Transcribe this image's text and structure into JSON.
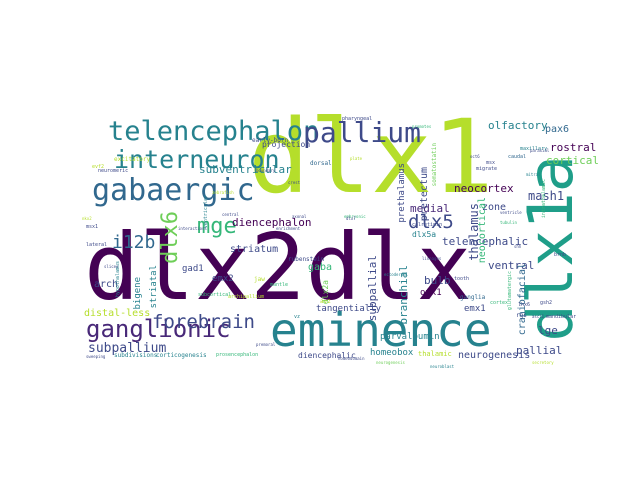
{
  "colors": {
    "background": "#ffffff",
    "palette": [
      "#440154",
      "#482878",
      "#3e4a89",
      "#31688e",
      "#26828e",
      "#1f9e89",
      "#35b779",
      "#6ece58",
      "#b5de2b",
      "#fde725"
    ]
  },
  "words": [
    {
      "text": "dlx2dlx",
      "color": "#440154"
    },
    {
      "text": "dlx1",
      "color": "#b5de2b"
    },
    {
      "text": "dlx1a",
      "color": "#1f9e89"
    },
    {
      "text": "eminence",
      "color": "#26828e"
    },
    {
      "text": "gabaergic",
      "color": "#31688e"
    },
    {
      "text": "telencephalon",
      "color": "#26828e"
    },
    {
      "text": "pallium",
      "color": "#3e4a89"
    },
    {
      "text": "interneuron",
      "color": "#26828e"
    },
    {
      "text": "ganglionic",
      "color": "#482878"
    },
    {
      "text": "mge",
      "color": "#35b779"
    },
    {
      "text": "dlx6",
      "color": "#6ece58"
    },
    {
      "text": "dlx5",
      "color": "#3e4a89"
    },
    {
      "text": "forebrain",
      "color": "#3e4a89"
    },
    {
      "text": "i12b",
      "color": "#31688e"
    },
    {
      "text": "subpallium",
      "color": "#3e4a89"
    },
    {
      "text": "subventricular",
      "color": "#26828e"
    },
    {
      "text": "diencephalon",
      "color": "#440154"
    },
    {
      "text": "neocortex",
      "color": "#440154"
    },
    {
      "text": "olfactory",
      "color": "#26828e"
    },
    {
      "text": "pax6",
      "color": "#31688e"
    },
    {
      "text": "rostral",
      "color": "#440154"
    },
    {
      "text": "cortical",
      "color": "#6ece58"
    },
    {
      "text": "mash1",
      "color": "#3e4a89"
    },
    {
      "text": "thalamus",
      "color": "#3e4a89"
    },
    {
      "text": "medial",
      "color": "#482878"
    },
    {
      "text": "zone",
      "color": "#3e4a89"
    },
    {
      "text": "telencephalic",
      "color": "#3e4a89"
    },
    {
      "text": "ventral",
      "color": "#3e4a89"
    },
    {
      "text": "craniofacial",
      "color": "#31688e"
    },
    {
      "text": "lge",
      "color": "#3e4a89"
    },
    {
      "text": "pallial",
      "color": "#3e4a89"
    },
    {
      "text": "neurogenesis",
      "color": "#3e4a89"
    },
    {
      "text": "thalamic",
      "color": "#b5de2b"
    },
    {
      "text": "homeobox",
      "color": "#26828e"
    },
    {
      "text": "parvalbumin",
      "color": "#26828e"
    },
    {
      "text": "emx1",
      "color": "#3e4a89"
    },
    {
      "text": "bulb",
      "color": "#3e4a89"
    },
    {
      "text": "branchial",
      "color": "#26828e"
    },
    {
      "text": "subpallial",
      "color": "#3e4a89"
    },
    {
      "text": "otx1",
      "color": "#440154"
    },
    {
      "text": "neocortical",
      "color": "#35b779"
    },
    {
      "text": "pretectum",
      "color": "#3e4a89"
    },
    {
      "text": "prethalamus",
      "color": "#3e4a89"
    },
    {
      "text": "somatostatin",
      "color": "#6ece58"
    },
    {
      "text": "dlx5a",
      "color": "#26828e"
    },
    {
      "text": "tangentially",
      "color": "#3e4a89"
    },
    {
      "text": "distal-less",
      "color": "#b5de2b"
    },
    {
      "text": "arch",
      "color": "#3e4a89"
    },
    {
      "text": "bigene",
      "color": "#26828e"
    },
    {
      "text": "striatal",
      "color": "#26828e"
    },
    {
      "text": "striatum",
      "color": "#3e4a89"
    },
    {
      "text": "gad1",
      "color": "#3e4a89"
    },
    {
      "text": "emx2",
      "color": "#3e4a89"
    },
    {
      "text": "gaba",
      "color": "#35b779"
    },
    {
      "text": "dlx2a",
      "color": "#6ece58"
    },
    {
      "text": "corticogenesis",
      "color": "#26828e"
    },
    {
      "text": "subdivisions",
      "color": "#26828e"
    },
    {
      "text": "diencephalic",
      "color": "#3e4a89"
    },
    {
      "text": "prosencephalon",
      "color": "#35b779"
    },
    {
      "text": "projection",
      "color": "#3e4a89"
    },
    {
      "text": "early-born",
      "color": "#3e4a89"
    },
    {
      "text": "excitatory",
      "color": "#b5de2b"
    },
    {
      "text": "dorsal",
      "color": "#31688e"
    },
    {
      "text": "ventricular",
      "color": "#26828e"
    },
    {
      "text": "rubenstein",
      "color": "#3e4a89"
    },
    {
      "text": "jaw",
      "color": "#b5de2b"
    },
    {
      "text": "mantle",
      "color": "#35b779"
    },
    {
      "text": "subcortical",
      "color": "#35b779"
    },
    {
      "text": "mandibular",
      "color": "#3e4a89"
    },
    {
      "text": "ganglia",
      "color": "#31688e"
    },
    {
      "text": "cortex",
      "color": "#35b779"
    },
    {
      "text": "tooth",
      "color": "#3e4a89"
    },
    {
      "text": "rgs",
      "color": "#3e4a89"
    },
    {
      "text": "maxillary",
      "color": "#26828e"
    },
    {
      "text": "caudal",
      "color": "#31688e"
    },
    {
      "text": "migrate",
      "color": "#3e4a89"
    },
    {
      "text": "msx",
      "color": "#3e4a89"
    },
    {
      "text": "gsh2",
      "color": "#3e4a89"
    },
    {
      "text": "lhx6",
      "color": "#3e4a89"
    },
    {
      "text": "neuromeric",
      "color": "#3e4a89"
    },
    {
      "text": "evf2",
      "color": "#b5de2b"
    },
    {
      "text": "boundary",
      "color": "#3e4a89"
    },
    {
      "text": "archipallium",
      "color": "#b5de2b"
    },
    {
      "text": "hypothalamus",
      "color": "#26828e"
    },
    {
      "text": "lateral",
      "color": "#3e4a89"
    },
    {
      "text": "slices",
      "color": "#3e4a89"
    },
    {
      "text": "premoral",
      "color": "#3e4a89"
    },
    {
      "text": "glutamatergic",
      "color": "#35b779"
    },
    {
      "text": "mitral",
      "color": "#26828e"
    },
    {
      "text": "calretinin",
      "color": "#3e4a89"
    },
    {
      "text": "pharyngeal",
      "color": "#3e4a89"
    },
    {
      "text": "lineages",
      "color": "#3e4a89"
    },
    {
      "text": "paraxial",
      "color": "#3e4a89"
    },
    {
      "text": "intrathalamic",
      "color": "#35b779"
    },
    {
      "text": "sweeping",
      "color": "#3e4a89"
    },
    {
      "text": "homeodomain",
      "color": "#3e4a89"
    },
    {
      "text": "neurogenesis",
      "color": "#6ece58"
    },
    {
      "text": "secretory",
      "color": "#b5de2b"
    },
    {
      "text": "enrichment",
      "color": "#3e4a89"
    },
    {
      "text": "vz",
      "color": "#26828e"
    },
    {
      "text": "avz",
      "color": "#b5de2b"
    },
    {
      "text": "brnb",
      "color": "#3e4a89"
    },
    {
      "text": "promotes",
      "color": "#35b779"
    },
    {
      "text": "interactions",
      "color": "#3e4a89"
    },
    {
      "text": "ectodermal",
      "color": "#26828e"
    },
    {
      "text": "oct6",
      "color": "#3e4a89"
    },
    {
      "text": "msx1",
      "color": "#3e4a89"
    },
    {
      "text": "ventricle",
      "color": "#3e4a89"
    },
    {
      "text": "central",
      "color": "#3e4a89"
    },
    {
      "text": "embryonic",
      "color": "#35b779"
    },
    {
      "text": "axonal",
      "color": "#3e4a89"
    },
    {
      "text": "dlx7",
      "color": "#3e4a89"
    },
    {
      "text": "crest",
      "color": "#3e4a89"
    },
    {
      "text": "zebrafish",
      "color": "#b5de2b"
    },
    {
      "text": "shh",
      "color": "#3e4a89"
    },
    {
      "text": "nkx2",
      "color": "#b5de2b"
    },
    {
      "text": "ascl1",
      "color": "#3e4a89"
    },
    {
      "text": "tubulin",
      "color": "#35b779"
    },
    {
      "text": "plate",
      "color": "#b5de2b"
    },
    {
      "text": "neuroblast",
      "color": "#26828e"
    }
  ]
}
